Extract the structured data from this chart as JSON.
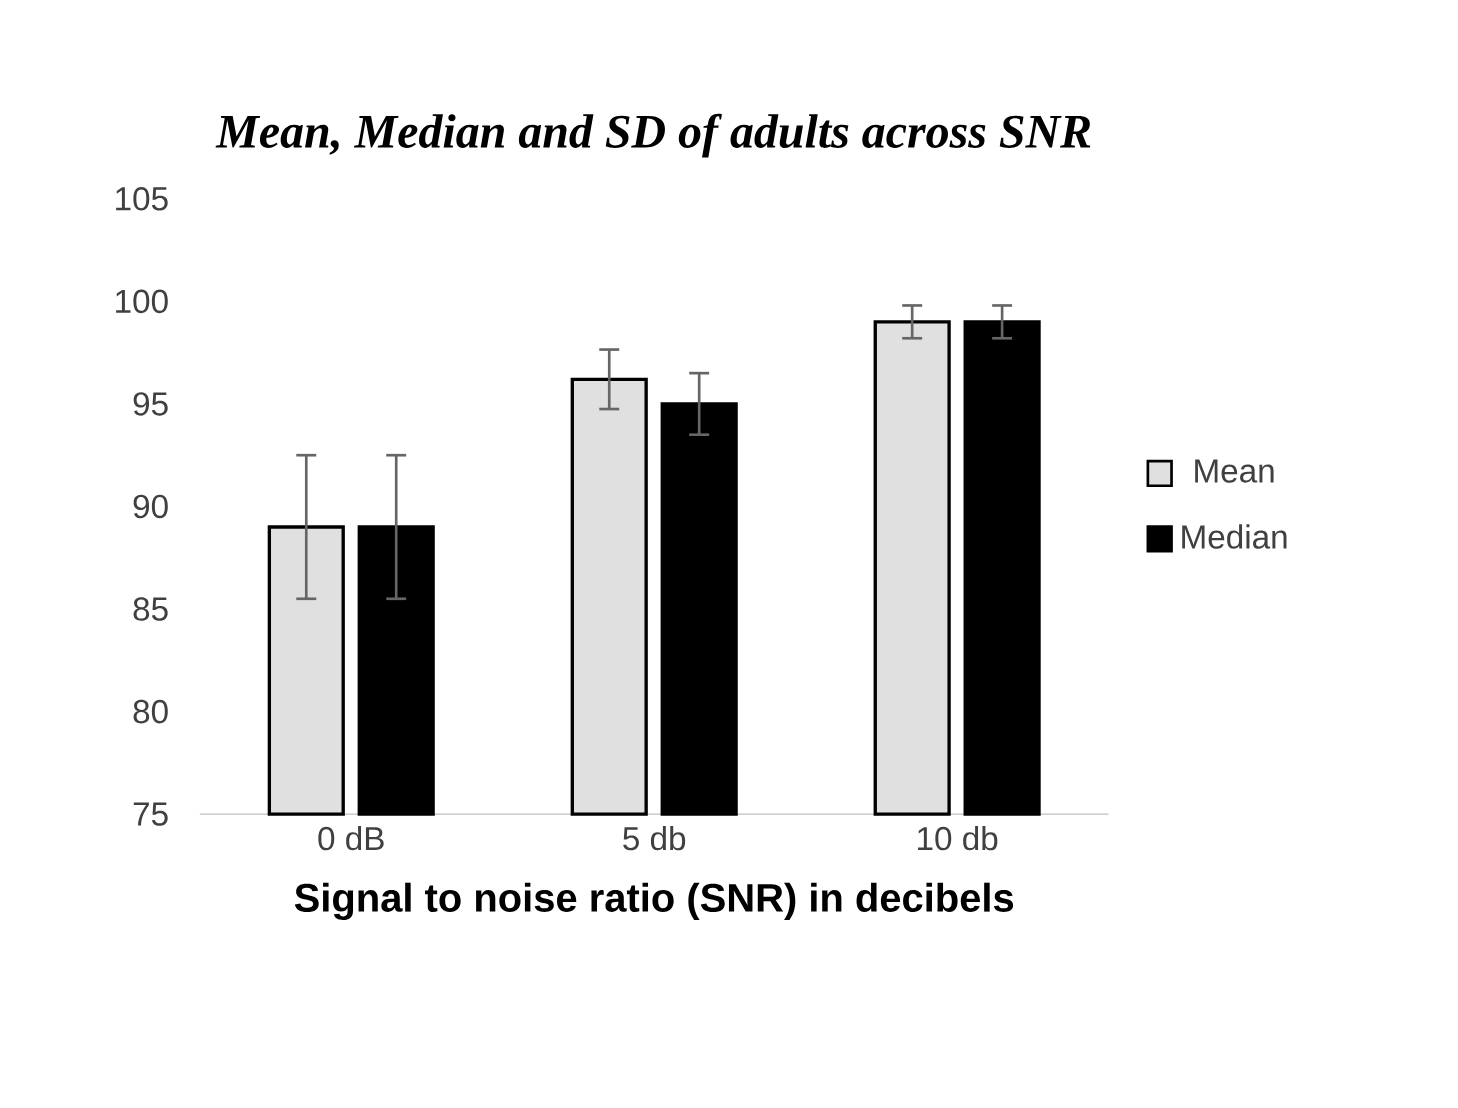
{
  "chart_data": {
    "type": "bar",
    "title": "*Mean, Median and SD of adults across SNR*",
    "xlabel": "Signal to noise ratio (SNR) in decibels",
    "categories": [
      "0 dB",
      "5 db",
      "10 db"
    ],
    "series": [
      {
        "name": "Mean",
        "color": "#e0e0e0",
        "values": [
          89,
          96.2,
          99
        ],
        "errors": [
          3.5,
          1.45,
          0.8
        ]
      },
      {
        "name": "Median",
        "color": "#000000",
        "values": [
          89,
          95,
          99
        ],
        "errors": [
          3.5,
          1.5,
          0.8
        ]
      }
    ],
    "ylim": [
      75,
      105
    ],
    "yticks": [
      75,
      80,
      85,
      90,
      95,
      100,
      105
    ],
    "legend": "right"
  }
}
